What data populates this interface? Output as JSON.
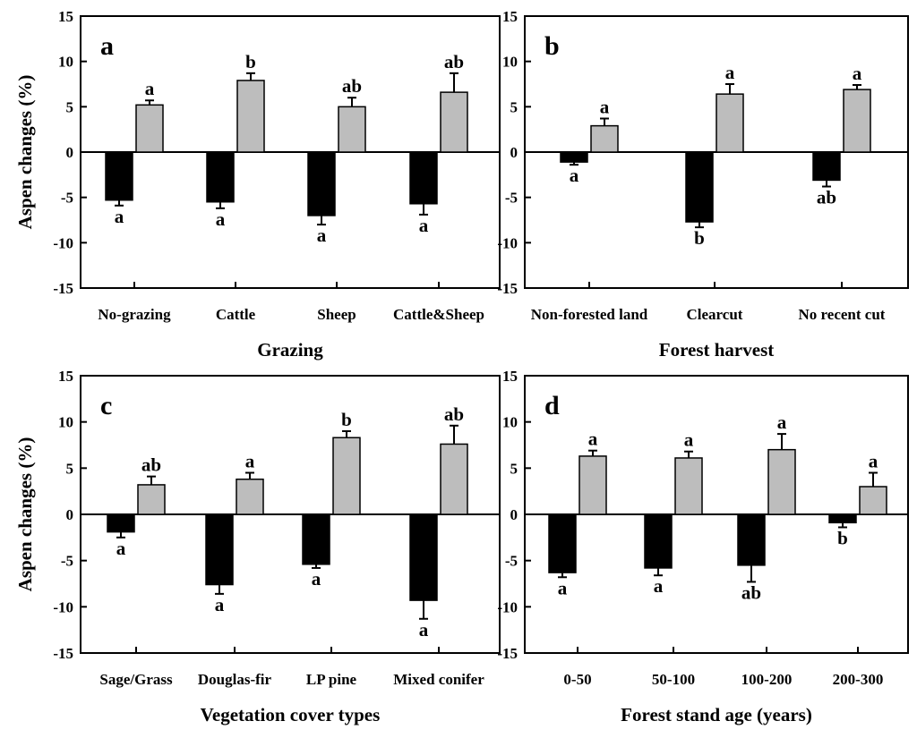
{
  "chart_data": [
    {
      "type": "bar",
      "panel_label": "a",
      "xlabel": "Grazing",
      "ylabel": "Aspen changes (%)",
      "ylim": [
        -15,
        15
      ],
      "yticks": [
        -15,
        -10,
        -5,
        0,
        5,
        10,
        15
      ],
      "categories": [
        "No-grazing",
        "Cattle",
        "Sheep",
        "Cattle&Sheep"
      ],
      "series": [
        {
          "color": "#000000",
          "values": [
            -5.3,
            -5.5,
            -7.0,
            -5.7
          ],
          "errors": [
            0.6,
            0.7,
            1.0,
            1.2
          ],
          "labels": [
            "a",
            "a",
            "a",
            "a"
          ]
        },
        {
          "color": "#bdbdbd",
          "values": [
            5.2,
            7.9,
            5.0,
            6.6
          ],
          "errors": [
            0.5,
            0.8,
            1.0,
            2.1
          ],
          "labels": [
            "a",
            "b",
            "ab",
            "ab"
          ]
        }
      ]
    },
    {
      "type": "bar",
      "panel_label": "b",
      "xlabel": "Forest harvest",
      "ylabel": "",
      "ylim": [
        -15,
        15
      ],
      "yticks": [
        -15,
        -10,
        -5,
        0,
        5,
        10,
        15
      ],
      "categories": [
        "Non-forested land",
        "Clearcut",
        "No recent cut"
      ],
      "series": [
        {
          "color": "#000000",
          "values": [
            -1.1,
            -7.7,
            -3.1
          ],
          "errors": [
            0.3,
            0.6,
            0.7
          ],
          "labels": [
            "a",
            "b",
            "ab"
          ]
        },
        {
          "color": "#bdbdbd",
          "values": [
            2.9,
            6.4,
            6.9
          ],
          "errors": [
            0.8,
            1.1,
            0.5
          ],
          "labels": [
            "a",
            "a",
            "a"
          ]
        }
      ]
    },
    {
      "type": "bar",
      "panel_label": "c",
      "xlabel": "Vegetation cover types",
      "ylabel": "Aspen changes (%)",
      "ylim": [
        -15,
        15
      ],
      "yticks": [
        -15,
        -10,
        -5,
        0,
        5,
        10,
        15
      ],
      "categories": [
        "Sage/Grass",
        "Douglas-fir",
        "LP pine",
        "Mixed conifer"
      ],
      "series": [
        {
          "color": "#000000",
          "values": [
            -1.9,
            -7.6,
            -5.4,
            -9.3
          ],
          "errors": [
            0.6,
            1.0,
            0.4,
            2.0
          ],
          "labels": [
            "a",
            "a",
            "a",
            "a"
          ]
        },
        {
          "color": "#bdbdbd",
          "values": [
            3.2,
            3.8,
            8.3,
            7.6
          ],
          "errors": [
            0.9,
            0.7,
            0.7,
            2.0
          ],
          "labels": [
            "ab",
            "a",
            "b",
            "ab"
          ]
        }
      ]
    },
    {
      "type": "bar",
      "panel_label": "d",
      "xlabel": "Forest stand age (years)",
      "ylabel": "",
      "ylim": [
        -15,
        15
      ],
      "yticks": [
        -15,
        -10,
        -5,
        0,
        5,
        10,
        15
      ],
      "categories": [
        "0-50",
        "50-100",
        "100-200",
        "200-300"
      ],
      "series": [
        {
          "color": "#000000",
          "values": [
            -6.3,
            -5.8,
            -5.5,
            -0.9
          ],
          "errors": [
            0.5,
            0.8,
            1.8,
            0.5
          ],
          "labels": [
            "a",
            "a",
            "ab",
            "b"
          ]
        },
        {
          "color": "#bdbdbd",
          "values": [
            6.3,
            6.1,
            7.0,
            3.0
          ],
          "errors": [
            0.6,
            0.7,
            1.7,
            1.5
          ],
          "labels": [
            "a",
            "a",
            "a",
            "a"
          ]
        }
      ]
    }
  ]
}
